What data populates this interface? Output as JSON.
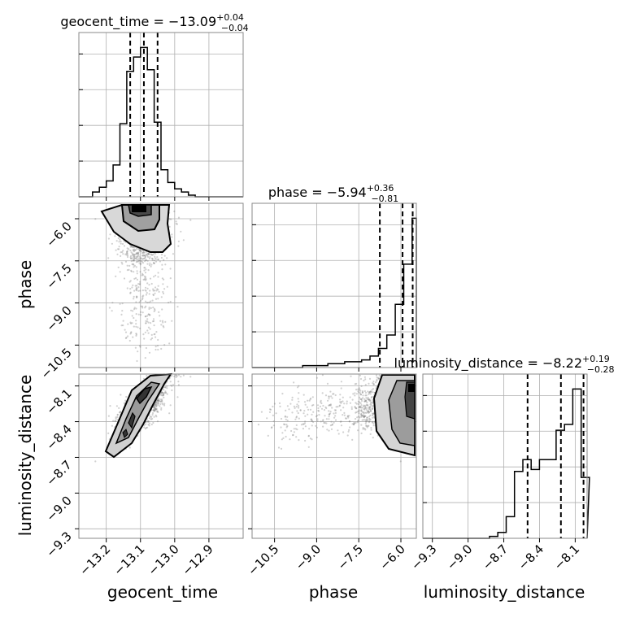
{
  "chart_data": {
    "type": "scatter",
    "parameters": [
      "geocent_time",
      "phase",
      "luminosity_distance"
    ],
    "axis_labels": [
      "geocent_time",
      "phase",
      "luminosity_distance"
    ],
    "ranges": {
      "geocent_time": [
        -13.28,
        -12.8
      ],
      "phase": [
        -11.3,
        -5.45
      ],
      "luminosity_distance": [
        -9.38,
        -8.0
      ]
    },
    "ticks": {
      "geocent_time": [
        -13.2,
        -13.1,
        -13.0,
        -12.9
      ],
      "phase": [
        -10.5,
        -9.0,
        -7.5,
        -6.0
      ],
      "luminosity_distance": [
        -9.3,
        -9.0,
        -8.7,
        -8.4,
        -8.1
      ]
    },
    "tick_labels": {
      "geocent_time": [
        "−13.2",
        "−13.1",
        "−13.0",
        "−12.9"
      ],
      "phase": [
        "−10.5",
        "−9.0",
        "−7.5",
        "−6.0"
      ],
      "luminosity_distance": [
        "−9.3",
        "−9.0",
        "−8.7",
        "−8.4",
        "−8.1"
      ]
    },
    "titles": [
      {
        "name": "geocent_time",
        "median": "−13.09",
        "plus": "+0.04",
        "minus": "−0.04"
      },
      {
        "name": "phase",
        "median": "−5.94",
        "plus": "+0.36",
        "minus": "−0.81"
      },
      {
        "name": "luminosity_distance",
        "median": "−8.22",
        "plus": "+0.19",
        "minus": "−0.28"
      }
    ],
    "quantiles": {
      "geocent_time": [
        -13.13,
        -13.09,
        -13.05
      ],
      "phase": [
        -6.75,
        -5.94,
        -5.58
      ],
      "luminosity_distance": [
        -8.5,
        -8.22,
        -8.03
      ]
    },
    "histograms": {
      "geocent_time": {
        "edges": [
          -13.28,
          -13.26,
          -13.24,
          -13.22,
          -13.2,
          -13.18,
          -13.16,
          -13.14,
          -13.12,
          -13.1,
          -13.08,
          -13.06,
          -13.04,
          -13.02,
          -13.0,
          -12.98,
          -12.96,
          -12.94,
          -12.92,
          -12.9,
          -12.88
        ],
        "counts": [
          0,
          0,
          3,
          6,
          10,
          20,
          46,
          79,
          88,
          94,
          80,
          47,
          17,
          9,
          5,
          3,
          1,
          0,
          0,
          0
        ]
      },
      "phase": {
        "edges": [
          -11.3,
          -11.0,
          -10.7,
          -10.4,
          -10.1,
          -9.8,
          -9.5,
          -9.2,
          -8.9,
          -8.6,
          -8.3,
          -8.0,
          -7.7,
          -7.4,
          -7.1,
          -6.8,
          -6.5,
          -6.2,
          -5.9,
          -5.6,
          -5.45
        ],
        "counts": [
          0,
          0,
          0,
          0,
          0,
          0,
          1,
          1,
          1,
          2,
          2,
          3,
          3,
          4,
          6,
          10,
          17,
          33,
          54,
          78
        ]
      },
      "luminosity_distance": {
        "edges": [
          -9.38,
          -9.31,
          -9.24,
          -9.17,
          -9.1,
          -9.03,
          -8.96,
          -8.89,
          -8.82,
          -8.75,
          -8.68,
          -8.61,
          -8.54,
          -8.47,
          -8.4,
          -8.33,
          -8.26,
          -8.19,
          -8.12,
          -8.05,
          -7.98
        ],
        "counts": [
          0,
          0,
          0,
          0,
          0,
          0,
          0,
          0,
          1,
          3,
          11,
          34,
          40,
          35,
          40,
          40,
          55,
          58,
          76,
          31
        ]
      }
    },
    "points": {
      "geocent_time_phase": "dense cloud centered near (-13.09, -6.0) extending to phase ≈ -11",
      "geocent_time_luminosity_distance": "positively correlated band from (-13.2, -8.6) to (-13.0, -8.0)",
      "phase_luminosity_distance": "dense near phase -6.0, luminosity_distance -8.0 to -8.5"
    },
    "grid": true,
    "colors": {
      "line": "#000000",
      "points": "#7a7a7a",
      "grid": "#b0b0b0"
    }
  }
}
